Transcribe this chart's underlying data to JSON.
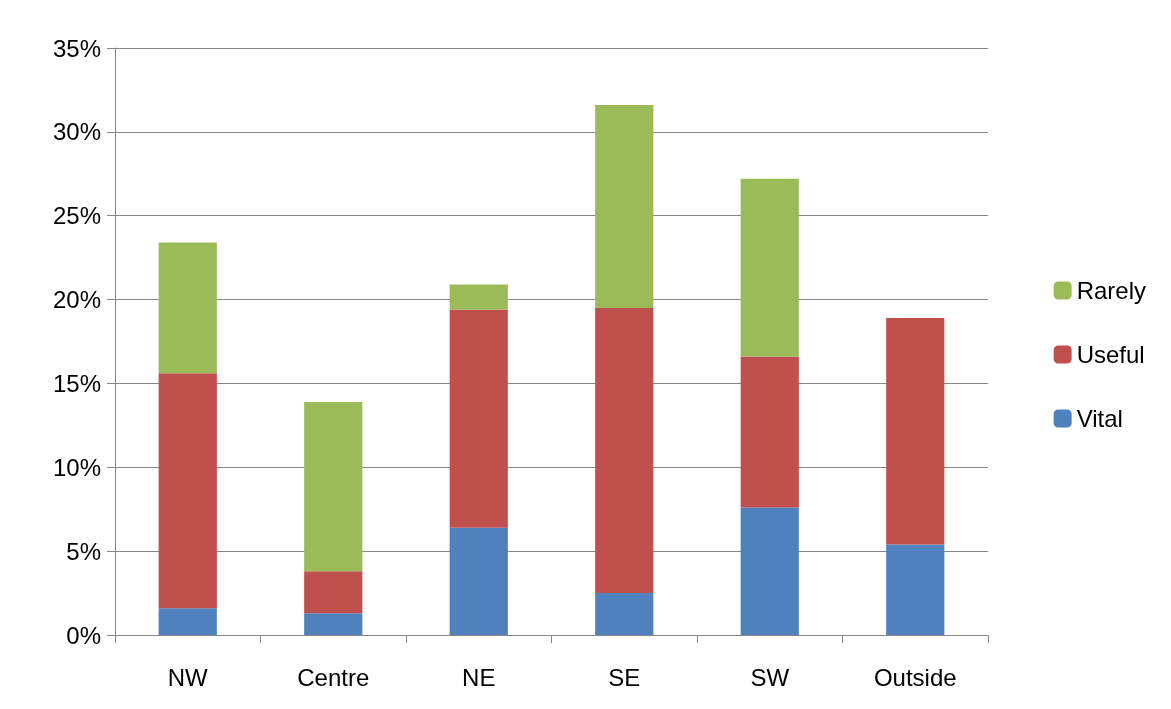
{
  "chart_data": {
    "type": "bar",
    "stacked": true,
    "categories": [
      "NW",
      "Centre",
      "NE",
      "SE",
      "SW",
      "Outside"
    ],
    "series": [
      {
        "name": "Vital",
        "color": "#4f81bd",
        "values": [
          1.6,
          1.3,
          6.4,
          2.5,
          7.6,
          5.4
        ]
      },
      {
        "name": "Useful",
        "color": "#c0504d",
        "values": [
          14.0,
          2.5,
          13.0,
          17.0,
          9.0,
          13.5
        ]
      },
      {
        "name": "Rarely",
        "color": "#9bbb59",
        "values": [
          7.8,
          10.1,
          1.5,
          12.1,
          10.6,
          0
        ]
      }
    ],
    "ylim": [
      0,
      35
    ],
    "yticks": [
      {
        "value": 0,
        "label": "0%"
      },
      {
        "value": 5,
        "label": "5%"
      },
      {
        "value": 10,
        "label": "10%"
      },
      {
        "value": 15,
        "label": "15%"
      },
      {
        "value": 20,
        "label": "20%"
      },
      {
        "value": 25,
        "label": "25%"
      },
      {
        "value": 30,
        "label": "30%"
      },
      {
        "value": 35,
        "label": "35%"
      }
    ],
    "grid": "y",
    "legend": "right"
  }
}
